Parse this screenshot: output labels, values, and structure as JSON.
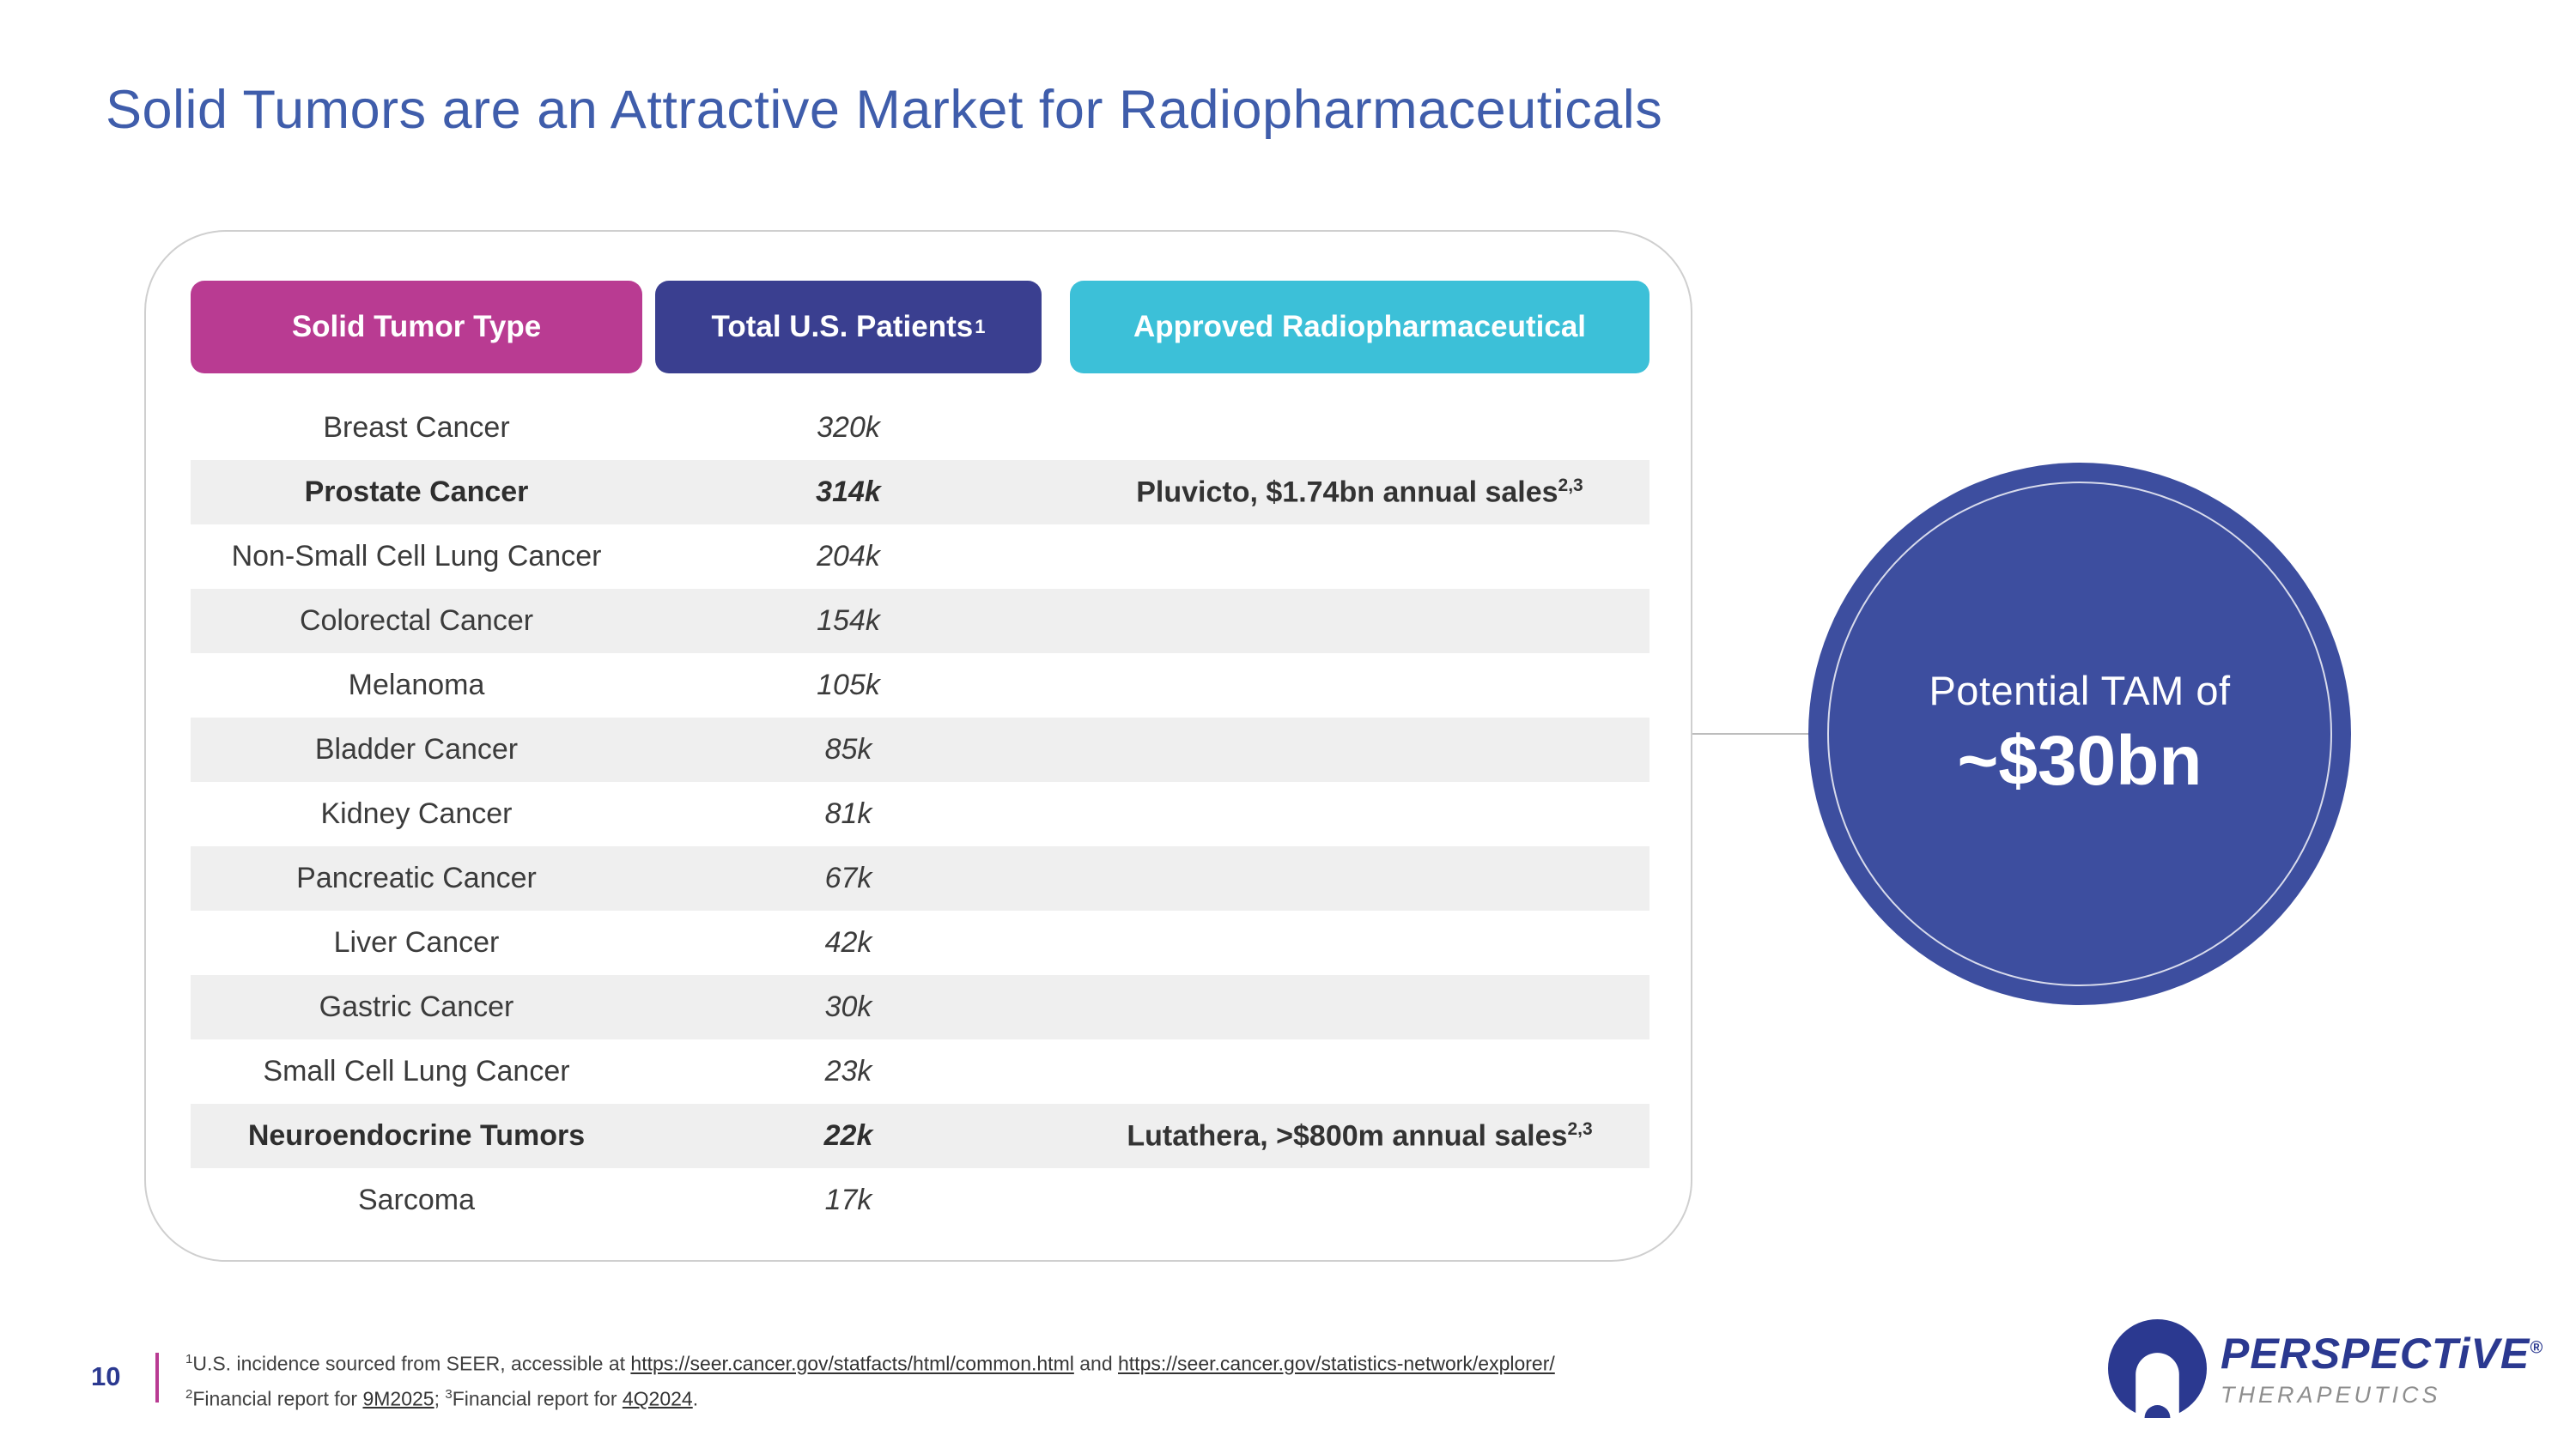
{
  "slide": {
    "title": "Solid Tumors are an Attractive Market for Radiopharmaceuticals",
    "page_number": "10"
  },
  "colors": {
    "title_blue": "#3f5dab",
    "header_tumor_magenta": "#b93b92",
    "header_patients_indigo": "#3a3f90",
    "header_approved_cyan": "#3cc0d8",
    "tam_circle_blue": "#3d4e9f",
    "divider_pink": "#b93b92",
    "stripe_gray": "#efefef"
  },
  "table": {
    "headers": [
      {
        "label": "Solid Tumor Type",
        "sup": "",
        "color": "#b93b92"
      },
      {
        "label": "Total U.S. Patients",
        "sup": "1",
        "color": "#3a3f90"
      },
      {
        "label": "Approved Radiopharmaceutical",
        "sup": "",
        "color": "#3cc0d8"
      }
    ],
    "rows": [
      {
        "tumor": "Breast Cancer",
        "patients": "320k",
        "approved": "",
        "approved_sup": "",
        "bold": false
      },
      {
        "tumor": "Prostate Cancer",
        "patients": "314k",
        "approved": "Pluvicto, $1.74bn annual sales",
        "approved_sup": "2,3",
        "bold": true
      },
      {
        "tumor": "Non-Small Cell Lung Cancer",
        "patients": "204k",
        "approved": "",
        "approved_sup": "",
        "bold": false
      },
      {
        "tumor": "Colorectal Cancer",
        "patients": "154k",
        "approved": "",
        "approved_sup": "",
        "bold": false
      },
      {
        "tumor": "Melanoma",
        "patients": "105k",
        "approved": "",
        "approved_sup": "",
        "bold": false
      },
      {
        "tumor": "Bladder Cancer",
        "patients": "85k",
        "approved": "",
        "approved_sup": "",
        "bold": false
      },
      {
        "tumor": "Kidney Cancer",
        "patients": "81k",
        "approved": "",
        "approved_sup": "",
        "bold": false
      },
      {
        "tumor": "Pancreatic Cancer",
        "patients": "67k",
        "approved": "",
        "approved_sup": "",
        "bold": false
      },
      {
        "tumor": "Liver Cancer",
        "patients": "42k",
        "approved": "",
        "approved_sup": "",
        "bold": false
      },
      {
        "tumor": "Gastric Cancer",
        "patients": "30k",
        "approved": "",
        "approved_sup": "",
        "bold": false
      },
      {
        "tumor": "Small Cell Lung Cancer",
        "patients": "23k",
        "approved": "",
        "approved_sup": "",
        "bold": false
      },
      {
        "tumor": "Neuroendocrine Tumors",
        "patients": "22k",
        "approved": "Lutathera, >$800m annual sales",
        "approved_sup": "2,3",
        "bold": true
      },
      {
        "tumor": "Sarcoma",
        "patients": "17k",
        "approved": "",
        "approved_sup": "",
        "bold": false
      }
    ]
  },
  "tam": {
    "line1": "Potential TAM of",
    "line2": "~$30bn"
  },
  "footnotes": {
    "sup1": "1",
    "line1_pre": "U.S. incidence sourced from SEER, accessible at ",
    "line1_link1": "https://seer.cancer.gov/statfacts/html/common.html",
    "line1_mid": " and ",
    "line1_link2": "https://seer.cancer.gov/statistics-network/explorer/",
    "sup2": "2",
    "line2_pre": "Financial report for ",
    "line2_link1": "9M2025",
    "line2_sep": "; ",
    "sup3": "3",
    "line2_mid": "Financial report for ",
    "line2_link2": "4Q2024",
    "line2_end": "."
  },
  "logo": {
    "name": "PERSPECTiVE",
    "registered": "®",
    "subtitle": "THERAPEUTICS"
  }
}
